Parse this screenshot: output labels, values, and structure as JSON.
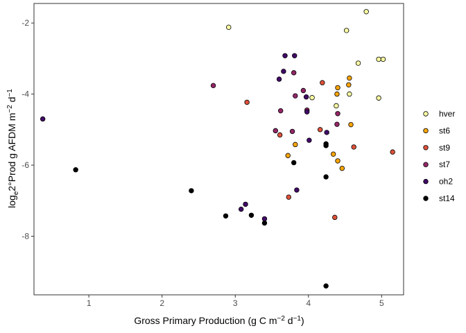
{
  "chart_data": {
    "type": "scatter",
    "title": "",
    "xlabel": {
      "pre": "Gross Primary Production (g C m",
      "sup1": "−2",
      "mid": " d",
      "sup2": "−1",
      "post": ")"
    },
    "ylabel": {
      "pre": "log",
      "sub": "e",
      "mid1": "2°Prod g AFDM m",
      "sup1": "−2",
      "mid2": " d",
      "sup2": "−1"
    },
    "xlim": [
      0.25,
      5.3
    ],
    "ylim": [
      -9.65,
      -1.45
    ],
    "xticks": [
      1,
      2,
      3,
      4,
      5
    ],
    "xtick_labels": [
      "1",
      "2",
      "3",
      "4",
      "5"
    ],
    "yticks": [
      -8,
      -6,
      -4,
      -2
    ],
    "ytick_labels": [
      "-8",
      "-6",
      "-4",
      "-2"
    ],
    "grid": false,
    "legend_position": "right",
    "series": [
      {
        "name": "hver",
        "color": "#FCFFA4",
        "points": [
          [
            2.91,
            -2.12
          ],
          [
            4.79,
            -1.68
          ],
          [
            4.52,
            -2.21
          ],
          [
            4.68,
            -3.13
          ],
          [
            4.96,
            -3.02
          ],
          [
            5.02,
            -3.02
          ],
          [
            4.56,
            -4.0
          ],
          [
            4.05,
            -4.1
          ],
          [
            4.38,
            -4.33
          ],
          [
            4.96,
            -4.11
          ]
        ]
      },
      {
        "name": "st6",
        "color": "#FCA50A",
        "points": [
          [
            4.56,
            -3.55
          ],
          [
            4.4,
            -3.82
          ],
          [
            4.55,
            -3.74
          ],
          [
            4.39,
            -4.0
          ],
          [
            4.58,
            -4.86
          ],
          [
            3.82,
            -5.42
          ],
          [
            3.72,
            -5.73
          ],
          [
            4.34,
            -5.69
          ],
          [
            4.4,
            -5.88
          ],
          [
            4.46,
            -6.09
          ]
        ]
      },
      {
        "name": "st9",
        "color": "#DD513A",
        "points": [
          [
            3.16,
            -4.23
          ],
          [
            4.19,
            -3.68
          ],
          [
            3.61,
            -5.15
          ],
          [
            4.16,
            -5.0
          ],
          [
            4.62,
            -5.49
          ],
          [
            5.15,
            -5.63
          ],
          [
            3.73,
            -6.9
          ],
          [
            4.36,
            -7.47
          ]
        ]
      },
      {
        "name": "st7",
        "color": "#932667",
        "points": [
          [
            2.7,
            -3.76
          ],
          [
            3.8,
            -3.4
          ],
          [
            3.93,
            -3.9
          ],
          [
            3.82,
            -4.05
          ],
          [
            3.62,
            -4.47
          ],
          [
            3.98,
            -4.45
          ],
          [
            4.4,
            -4.55
          ],
          [
            4.39,
            -4.85
          ],
          [
            3.55,
            -5.03
          ],
          [
            3.78,
            -5.05
          ]
        ]
      },
      {
        "name": "oh2",
        "color": "#420A68",
        "points": [
          [
            0.37,
            -4.7
          ],
          [
            3.68,
            -2.92
          ],
          [
            3.81,
            -2.92
          ],
          [
            3.66,
            -3.36
          ],
          [
            3.6,
            -3.58
          ],
          [
            3.97,
            -4.08
          ],
          [
            3.98,
            -4.5
          ],
          [
            4.01,
            -5.3
          ],
          [
            4.25,
            -5.08
          ],
          [
            3.84,
            -6.7
          ],
          [
            3.14,
            -7.1
          ],
          [
            3.08,
            -7.24
          ],
          [
            3.4,
            -7.51
          ]
        ]
      },
      {
        "name": "st14",
        "color": "#000004",
        "points": [
          [
            0.82,
            -6.13
          ],
          [
            2.4,
            -6.72
          ],
          [
            2.87,
            -7.43
          ],
          [
            3.22,
            -7.41
          ],
          [
            3.4,
            -7.63
          ],
          [
            3.8,
            -5.93
          ],
          [
            4.24,
            -5.4
          ],
          [
            4.24,
            -5.45
          ],
          [
            4.24,
            -6.33
          ],
          [
            4.24,
            -9.4
          ]
        ]
      }
    ]
  }
}
